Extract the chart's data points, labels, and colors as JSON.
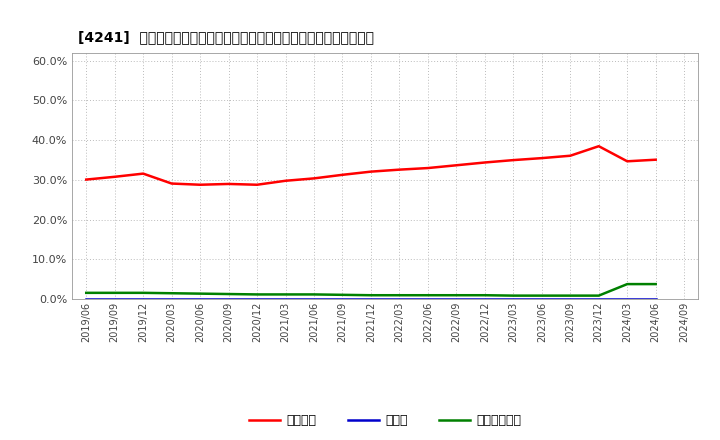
{
  "title": "[4241]  自己資本、のれん、繰延税金資産の総資産に対する比率の推移",
  "x_labels": [
    "2019/06",
    "2019/09",
    "2019/12",
    "2020/03",
    "2020/06",
    "2020/09",
    "2020/12",
    "2021/03",
    "2021/06",
    "2021/09",
    "2021/12",
    "2022/03",
    "2022/06",
    "2022/09",
    "2022/12",
    "2023/03",
    "2023/06",
    "2023/09",
    "2023/12",
    "2024/03",
    "2024/06",
    "2024/09"
  ],
  "equity": [
    0.301,
    0.308,
    0.316,
    0.291,
    0.288,
    0.29,
    0.288,
    0.298,
    0.304,
    0.313,
    0.321,
    0.326,
    0.33,
    0.337,
    0.344,
    0.35,
    0.355,
    0.361,
    0.385,
    0.347,
    0.351,
    null
  ],
  "noren": [
    0.0,
    0.0,
    0.0,
    0.0,
    0.0,
    0.0,
    0.0,
    0.0,
    0.0,
    0.0,
    0.0,
    0.0,
    0.0,
    0.0,
    0.0,
    0.0,
    0.0,
    0.0,
    0.0,
    0.0,
    0.0,
    null
  ],
  "deferred_tax": [
    0.016,
    0.016,
    0.016,
    0.015,
    0.014,
    0.013,
    0.012,
    0.012,
    0.012,
    0.011,
    0.01,
    0.01,
    0.01,
    0.01,
    0.01,
    0.009,
    0.009,
    0.009,
    0.009,
    0.038,
    0.038,
    null
  ],
  "equity_color": "#ff0000",
  "noren_color": "#0000cc",
  "deferred_tax_color": "#008000",
  "bg_color": "#ffffff",
  "plot_bg_color": "#ffffff",
  "grid_color": "#bbbbbb",
  "ylim": [
    0.0,
    0.62
  ],
  "yticks": [
    0.0,
    0.1,
    0.2,
    0.3,
    0.4,
    0.5,
    0.6
  ],
  "legend_labels": [
    "自己資本",
    "のれん",
    "繰延税金資産"
  ],
  "linewidth": 1.8
}
